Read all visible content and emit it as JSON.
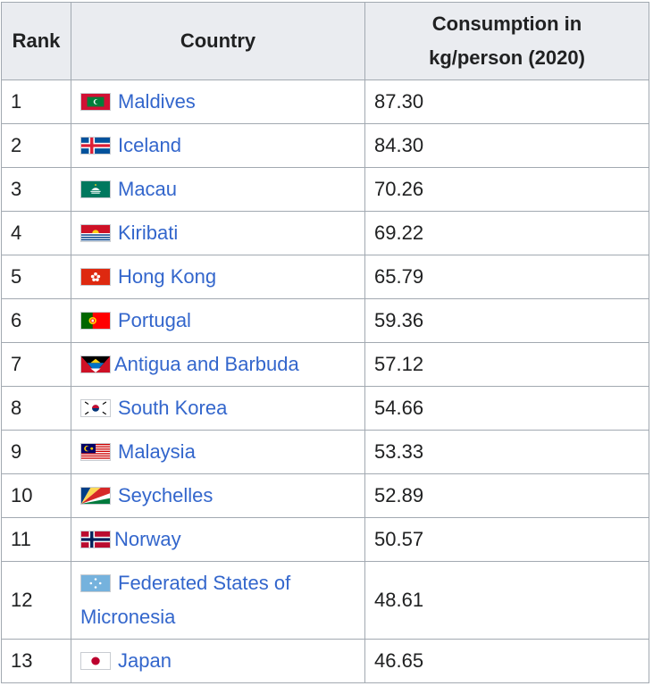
{
  "table": {
    "headers": {
      "rank": "Rank",
      "country": "Country",
      "consumption_line1": "Consumption in",
      "consumption_line2": "kg/person (2020)"
    },
    "rows": [
      {
        "rank": "1",
        "country": "Maldives",
        "value": "87.30",
        "flag": "maldives-flag-icon"
      },
      {
        "rank": "2",
        "country": "Iceland",
        "value": "84.30",
        "flag": "iceland-flag-icon"
      },
      {
        "rank": "3",
        "country": "Macau",
        "value": "70.26",
        "flag": "macau-flag-icon"
      },
      {
        "rank": "4",
        "country": "Kiribati",
        "value": "69.22",
        "flag": "kiribati-flag-icon"
      },
      {
        "rank": "5",
        "country": "Hong Kong",
        "value": "65.79",
        "flag": "hong-kong-flag-icon"
      },
      {
        "rank": "6",
        "country": "Portugal",
        "value": "59.36",
        "flag": "portugal-flag-icon"
      },
      {
        "rank": "7",
        "country": "Antigua and Barbuda",
        "value": "57.12",
        "flag": "antigua-barbuda-flag-icon"
      },
      {
        "rank": "8",
        "country": "South Korea",
        "value": "54.66",
        "flag": "south-korea-flag-icon"
      },
      {
        "rank": "9",
        "country": "Malaysia",
        "value": "53.33",
        "flag": "malaysia-flag-icon"
      },
      {
        "rank": "10",
        "country": "Seychelles",
        "value": "52.89",
        "flag": "seychelles-flag-icon"
      },
      {
        "rank": "11",
        "country": "Norway",
        "value": "50.57",
        "flag": "norway-flag-icon"
      },
      {
        "rank": "12",
        "country": "Federated States of Micronesia",
        "value": "48.61",
        "flag": "micronesia-flag-icon"
      },
      {
        "rank": "13",
        "country": "Japan",
        "value": "46.65",
        "flag": "japan-flag-icon"
      }
    ]
  },
  "colors": {
    "link": "#3366cc",
    "header_bg": "#eaecf0",
    "border": "#a2a9b1"
  }
}
